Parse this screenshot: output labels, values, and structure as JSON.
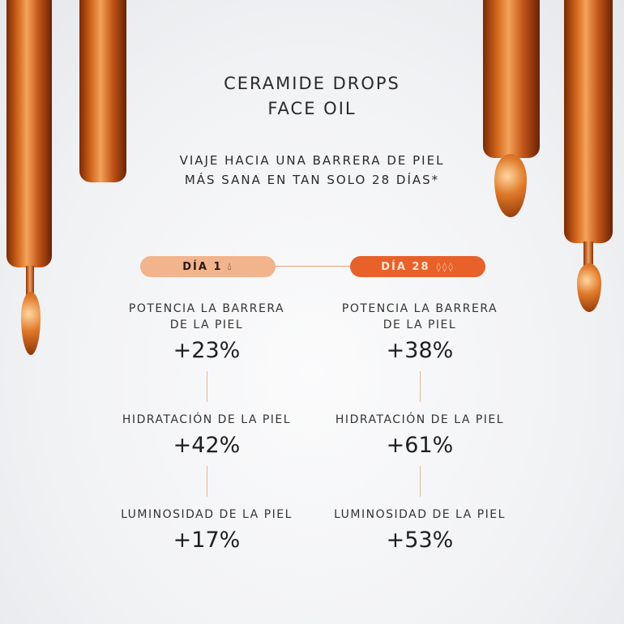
{
  "title": [
    "CERAMIDE DROPS",
    "FACE OIL"
  ],
  "subtitle": [
    "VIAJE HACIA UNA BARRERA DE PIEL",
    "MÁS SANA EN TAN SOLO 28 DÍAS*"
  ],
  "day1": {
    "label": "DÍA 1",
    "icon": "single-drop-icon",
    "color": "#f2b48c"
  },
  "day28": {
    "label": "DÍA 28",
    "icon": "multiple-drops-icon",
    "color": "#e8612a"
  },
  "metrics": {
    "day1": [
      {
        "label": "POTENCIA LA BARRERA DE LA PIEL",
        "value": "+23%"
      },
      {
        "label": "HIDRATACIÓN DE LA PIEL",
        "value": "+42%"
      },
      {
        "label": "LUMINOSIDAD DE LA PIEL",
        "value": "+17%"
      }
    ],
    "day28": [
      {
        "label": "POTENCIA LA BARRERA DE LA PIEL",
        "value": "+38%"
      },
      {
        "label": "HIDRATACIÓN DE LA PIEL",
        "value": "+61%"
      },
      {
        "label": "LUMINOSIDAD DE LA PIEL",
        "value": "+53%"
      }
    ]
  }
}
